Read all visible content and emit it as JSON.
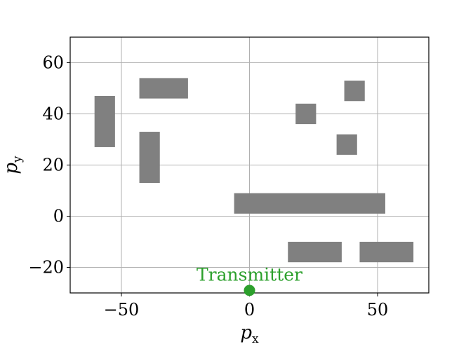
{
  "chart_data": {
    "type": "scatter",
    "title": "",
    "xlabel": "p",
    "xlabel_sub": "x",
    "ylabel": "p",
    "ylabel_sub": "y",
    "xlim": [
      -70,
      70
    ],
    "ylim": [
      -30,
      70
    ],
    "grid": true,
    "x_ticks": [
      -50,
      0,
      50
    ],
    "x_tick_labels": [
      "−50",
      "0",
      "50"
    ],
    "y_ticks": [
      -20,
      0,
      20,
      40,
      60
    ],
    "y_tick_labels": [
      "−20",
      "0",
      "20",
      "40",
      "60"
    ],
    "obstacle_color": "#808080",
    "obstacles": [
      {
        "x0": -60.5,
        "x1": -52.5,
        "y0": 27,
        "y1": 47
      },
      {
        "x0": -43,
        "x1": -24,
        "y0": 46,
        "y1": 54
      },
      {
        "x0": -43,
        "x1": -35,
        "y0": 13,
        "y1": 33
      },
      {
        "x0": 18,
        "x1": 26,
        "y0": 36,
        "y1": 44
      },
      {
        "x0": 37,
        "x1": 45,
        "y0": 45,
        "y1": 53
      },
      {
        "x0": 34,
        "x1": 42,
        "y0": 24,
        "y1": 32
      },
      {
        "x0": -6,
        "x1": 53,
        "y0": 1,
        "y1": 9
      },
      {
        "x0": 15,
        "x1": 36,
        "y0": -18,
        "y1": -10
      },
      {
        "x0": 43,
        "x1": 64,
        "y0": -18,
        "y1": -10
      }
    ],
    "transmitter": {
      "label": "Transmitter",
      "x": 0,
      "y": -29,
      "color": "#2ca02c"
    }
  }
}
